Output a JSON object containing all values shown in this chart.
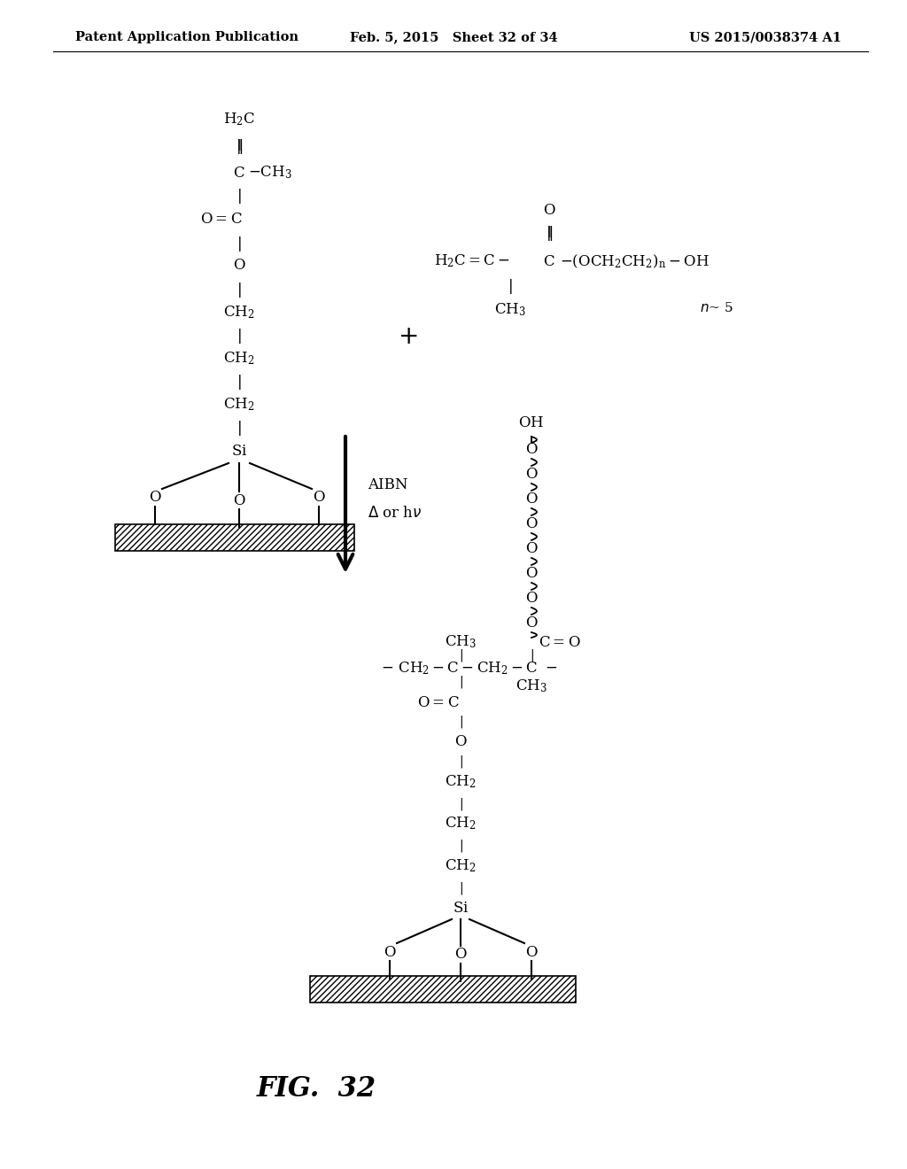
{
  "background_color": "#ffffff",
  "header_left": "Patent Application Publication",
  "header_mid": "Feb. 5, 2015   Sheet 32 of 34",
  "header_right": "US 2015/0038374 A1",
  "figure_label": "FIG.  32",
  "header_fontsize": 10.5,
  "figure_label_fontsize": 22,
  "chem_fontsize": 12
}
